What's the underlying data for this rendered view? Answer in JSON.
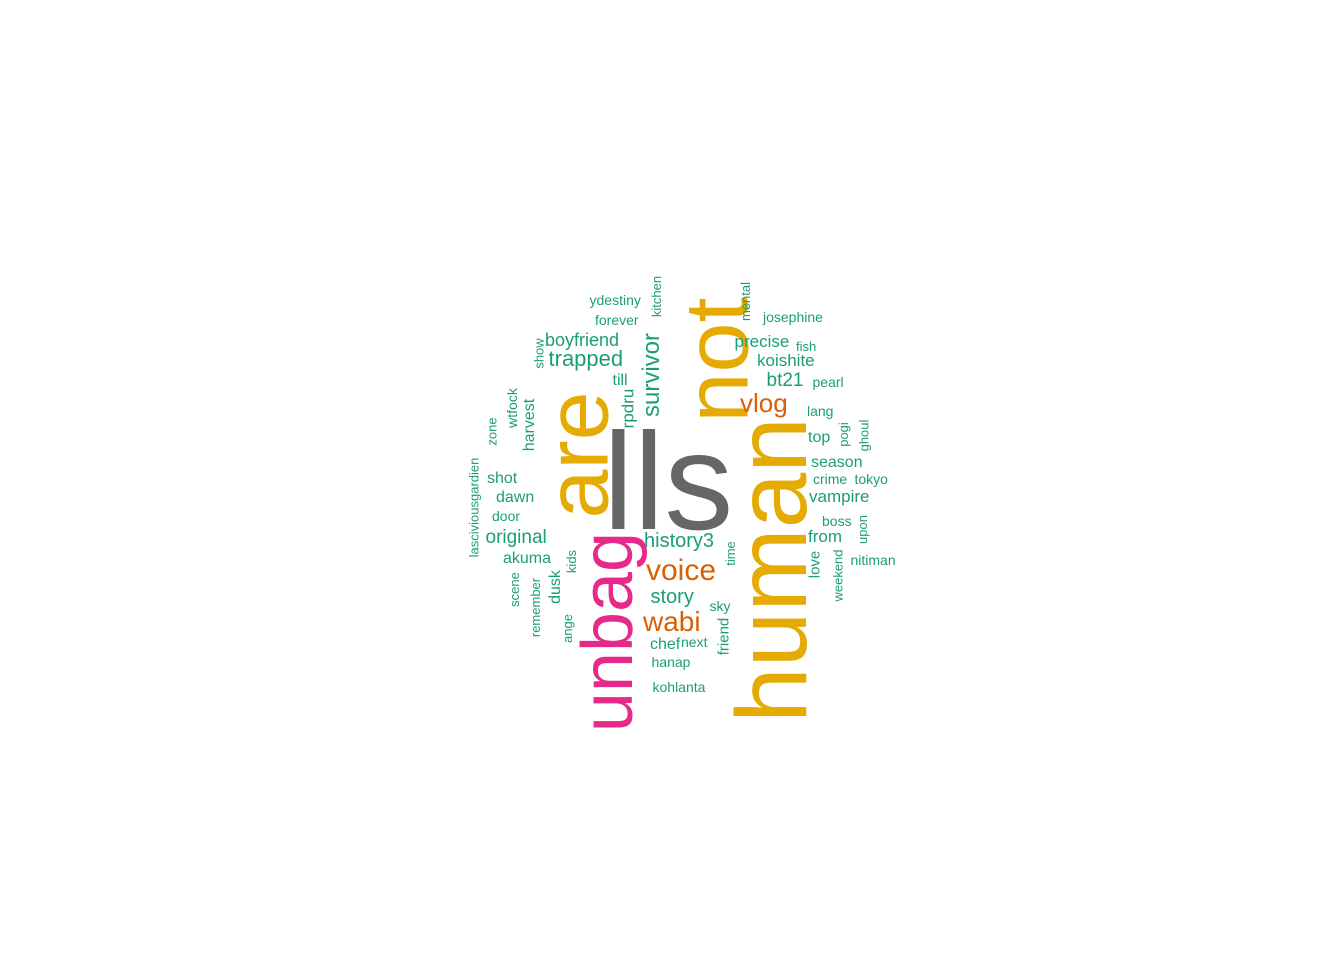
{
  "colors": {
    "background": "#ffffff",
    "gray": "#666666",
    "gold": "#E6AB02",
    "pink": "#E7298A",
    "orange": "#D95F02",
    "teal": "#1B9E77"
  },
  "words": [
    {
      "text": "lls",
      "color": "gray"
    },
    {
      "text": "human",
      "color": "gold"
    },
    {
      "text": "not",
      "color": "gold"
    },
    {
      "text": "are",
      "color": "gold"
    },
    {
      "text": "unbag",
      "color": "pink"
    },
    {
      "text": "voice",
      "color": "orange"
    },
    {
      "text": "wabi",
      "color": "orange"
    },
    {
      "text": "vlog",
      "color": "orange"
    },
    {
      "text": "survivor",
      "color": "teal"
    },
    {
      "text": "trapped",
      "color": "teal"
    },
    {
      "text": "history3",
      "color": "teal"
    },
    {
      "text": "boyfriend",
      "color": "teal"
    },
    {
      "text": "original",
      "color": "teal"
    },
    {
      "text": "story",
      "color": "teal"
    },
    {
      "text": "bt21",
      "color": "teal"
    },
    {
      "text": "precise",
      "color": "teal"
    },
    {
      "text": "koishite",
      "color": "teal"
    },
    {
      "text": "vampire",
      "color": "teal"
    },
    {
      "text": "season",
      "color": "teal"
    },
    {
      "text": "from",
      "color": "teal"
    },
    {
      "text": "top",
      "color": "teal"
    },
    {
      "text": "shot",
      "color": "teal"
    },
    {
      "text": "dawn",
      "color": "teal"
    },
    {
      "text": "akuma",
      "color": "teal"
    },
    {
      "text": "harvest",
      "color": "teal"
    },
    {
      "text": "rpdru",
      "color": "teal"
    },
    {
      "text": "dusk",
      "color": "teal"
    },
    {
      "text": "chef",
      "color": "teal"
    },
    {
      "text": "friend",
      "color": "teal"
    },
    {
      "text": "love",
      "color": "teal"
    },
    {
      "text": "till",
      "color": "teal"
    },
    {
      "text": "ydestiny",
      "color": "teal"
    },
    {
      "text": "forever",
      "color": "teal"
    },
    {
      "text": "kitchen",
      "color": "teal"
    },
    {
      "text": "mental",
      "color": "teal"
    },
    {
      "text": "josephine",
      "color": "teal"
    },
    {
      "text": "fish",
      "color": "teal"
    },
    {
      "text": "show",
      "color": "teal"
    },
    {
      "text": "pearl",
      "color": "teal"
    },
    {
      "text": "wtfock",
      "color": "teal"
    },
    {
      "text": "zone",
      "color": "teal"
    },
    {
      "text": "lang",
      "color": "teal"
    },
    {
      "text": "pogi",
      "color": "teal"
    },
    {
      "text": "ghoul",
      "color": "teal"
    },
    {
      "text": "lasciviousgardien",
      "color": "teal"
    },
    {
      "text": "crime",
      "color": "teal"
    },
    {
      "text": "tokyo",
      "color": "teal"
    },
    {
      "text": "door",
      "color": "teal"
    },
    {
      "text": "boss",
      "color": "teal"
    },
    {
      "text": "upon",
      "color": "teal"
    },
    {
      "text": "time",
      "color": "teal"
    },
    {
      "text": "nitiman",
      "color": "teal"
    },
    {
      "text": "kids",
      "color": "teal"
    },
    {
      "text": "scene",
      "color": "teal"
    },
    {
      "text": "weekend",
      "color": "teal"
    },
    {
      "text": "remember",
      "color": "teal"
    },
    {
      "text": "sky",
      "color": "teal"
    },
    {
      "text": "ange",
      "color": "teal"
    },
    {
      "text": "next",
      "color": "teal"
    },
    {
      "text": "hanap",
      "color": "teal"
    },
    {
      "text": "kohlanta",
      "color": "teal"
    }
  ]
}
